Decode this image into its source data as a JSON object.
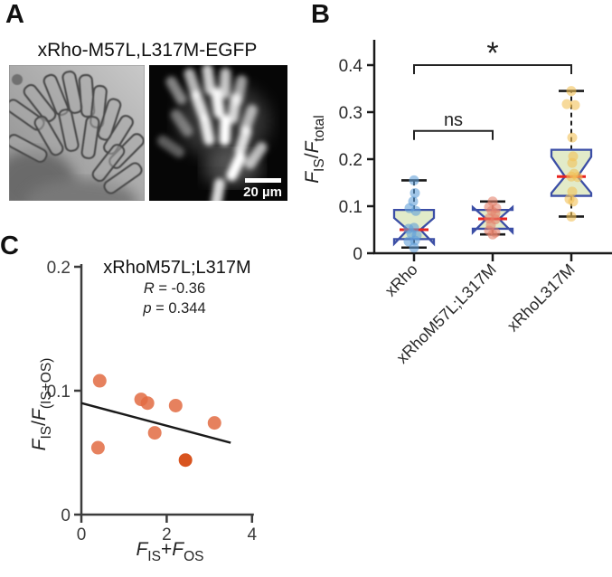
{
  "panels": {
    "a": {
      "label": "A",
      "title": "xRho-M57L,L317M-EGFP",
      "scale_bar_label": "20 µm",
      "image_types": [
        "brightfield",
        "EGFP fluorescence"
      ]
    },
    "b": {
      "label": "B"
    },
    "c": {
      "label": "C"
    }
  },
  "chart_data": [
    {
      "id": "panel_b",
      "type": "boxplot",
      "ylabel": "F_{IS}/F_{total}",
      "ylim": [
        0,
        0.45
      ],
      "yticks": [
        0,
        0.1,
        0.2,
        0.3,
        0.4
      ],
      "grid": false,
      "style": {
        "box_fill": "#e0e9c4",
        "box_edge": "#3b4ea6",
        "median_color": "#e8231f",
        "whisker_color": "#1a1a1a",
        "axis_color": "#1a1a1a"
      },
      "groups": [
        {
          "label": "xRho",
          "point_color": "#63a0d8",
          "box": {
            "q1": 0.03,
            "q3": 0.092,
            "median": 0.05,
            "notch_hi": 0.075,
            "notch_lo": 0.02,
            "whisker_lo": 0.012,
            "whisker_hi": 0.155
          },
          "points": [
            0.155,
            0.128,
            0.11,
            0.096,
            0.09,
            0.054,
            0.052,
            0.042,
            0.038,
            0.027,
            0.025,
            0.012
          ],
          "jitter": [
            0,
            1,
            -1,
            -5,
            2,
            0,
            -6,
            -3,
            3,
            1,
            -6,
            0
          ]
        },
        {
          "label": "xRhoM57L;L317M",
          "point_color": "#e4826c",
          "box": {
            "q1": 0.052,
            "q3": 0.092,
            "median": 0.073,
            "notch_hi": 0.098,
            "notch_lo": 0.044,
            "whisker_lo": 0.04,
            "whisker_hi": 0.11
          },
          "points": [
            0.11,
            0.098,
            0.096,
            0.09,
            0.085,
            0.074,
            0.072,
            0.06,
            0.048,
            0.044,
            0.04
          ],
          "jitter": [
            0,
            -4,
            4,
            -1,
            3,
            -4,
            3,
            -2,
            -4,
            3,
            0
          ]
        },
        {
          "label": "xRhoL317M",
          "point_color": "#f2c158",
          "box": {
            "q1": 0.122,
            "q3": 0.22,
            "median": 0.163,
            "notch_hi": 0.205,
            "notch_lo": 0.128,
            "whisker_lo": 0.078,
            "whisker_hi": 0.345
          },
          "points": [
            0.345,
            0.317,
            0.315,
            0.246,
            0.206,
            0.192,
            0.169,
            0.163,
            0.162,
            0.131,
            0.115,
            0.11,
            0.078
          ],
          "jitter": [
            0,
            -5,
            4,
            1,
            2,
            1,
            3,
            0,
            7,
            1,
            -2,
            2,
            0
          ]
        }
      ],
      "significance": [
        {
          "from": 0,
          "to": 1,
          "y": 0.26,
          "label": "ns"
        },
        {
          "from": 0,
          "to": 2,
          "y": 0.4,
          "label": "*"
        }
      ]
    },
    {
      "id": "panel_c",
      "type": "scatter",
      "title": "xRhoM57L;L317M",
      "stats": {
        "r_label": "R = -0.36",
        "p_label": "p = 0.344"
      },
      "xlabel": "F_{IS}+F_{OS}",
      "ylabel": "F_{IS}/F_{(IS+OS)}",
      "xlim": [
        0,
        4
      ],
      "ylim": [
        0,
        0.2
      ],
      "xticks": [
        0,
        2,
        4
      ],
      "yticks": [
        0,
        0.1,
        0.2
      ],
      "point_color": "#e26b42",
      "point_color_dark": "#d8541f",
      "line_color": "#1a1a1a",
      "axis_color": "#3c3c3c",
      "points": [
        [
          0.43,
          0.108
        ],
        [
          1.4,
          0.093
        ],
        [
          1.55,
          0.09
        ],
        [
          2.21,
          0.088
        ],
        [
          1.72,
          0.066
        ],
        [
          3.12,
          0.074
        ],
        [
          0.39,
          0.054
        ],
        [
          2.44,
          0.044,
          1
        ]
      ],
      "fit_line": {
        "x1": 0,
        "y1": 0.09,
        "x2": 3.5,
        "y2": 0.058
      }
    }
  ]
}
